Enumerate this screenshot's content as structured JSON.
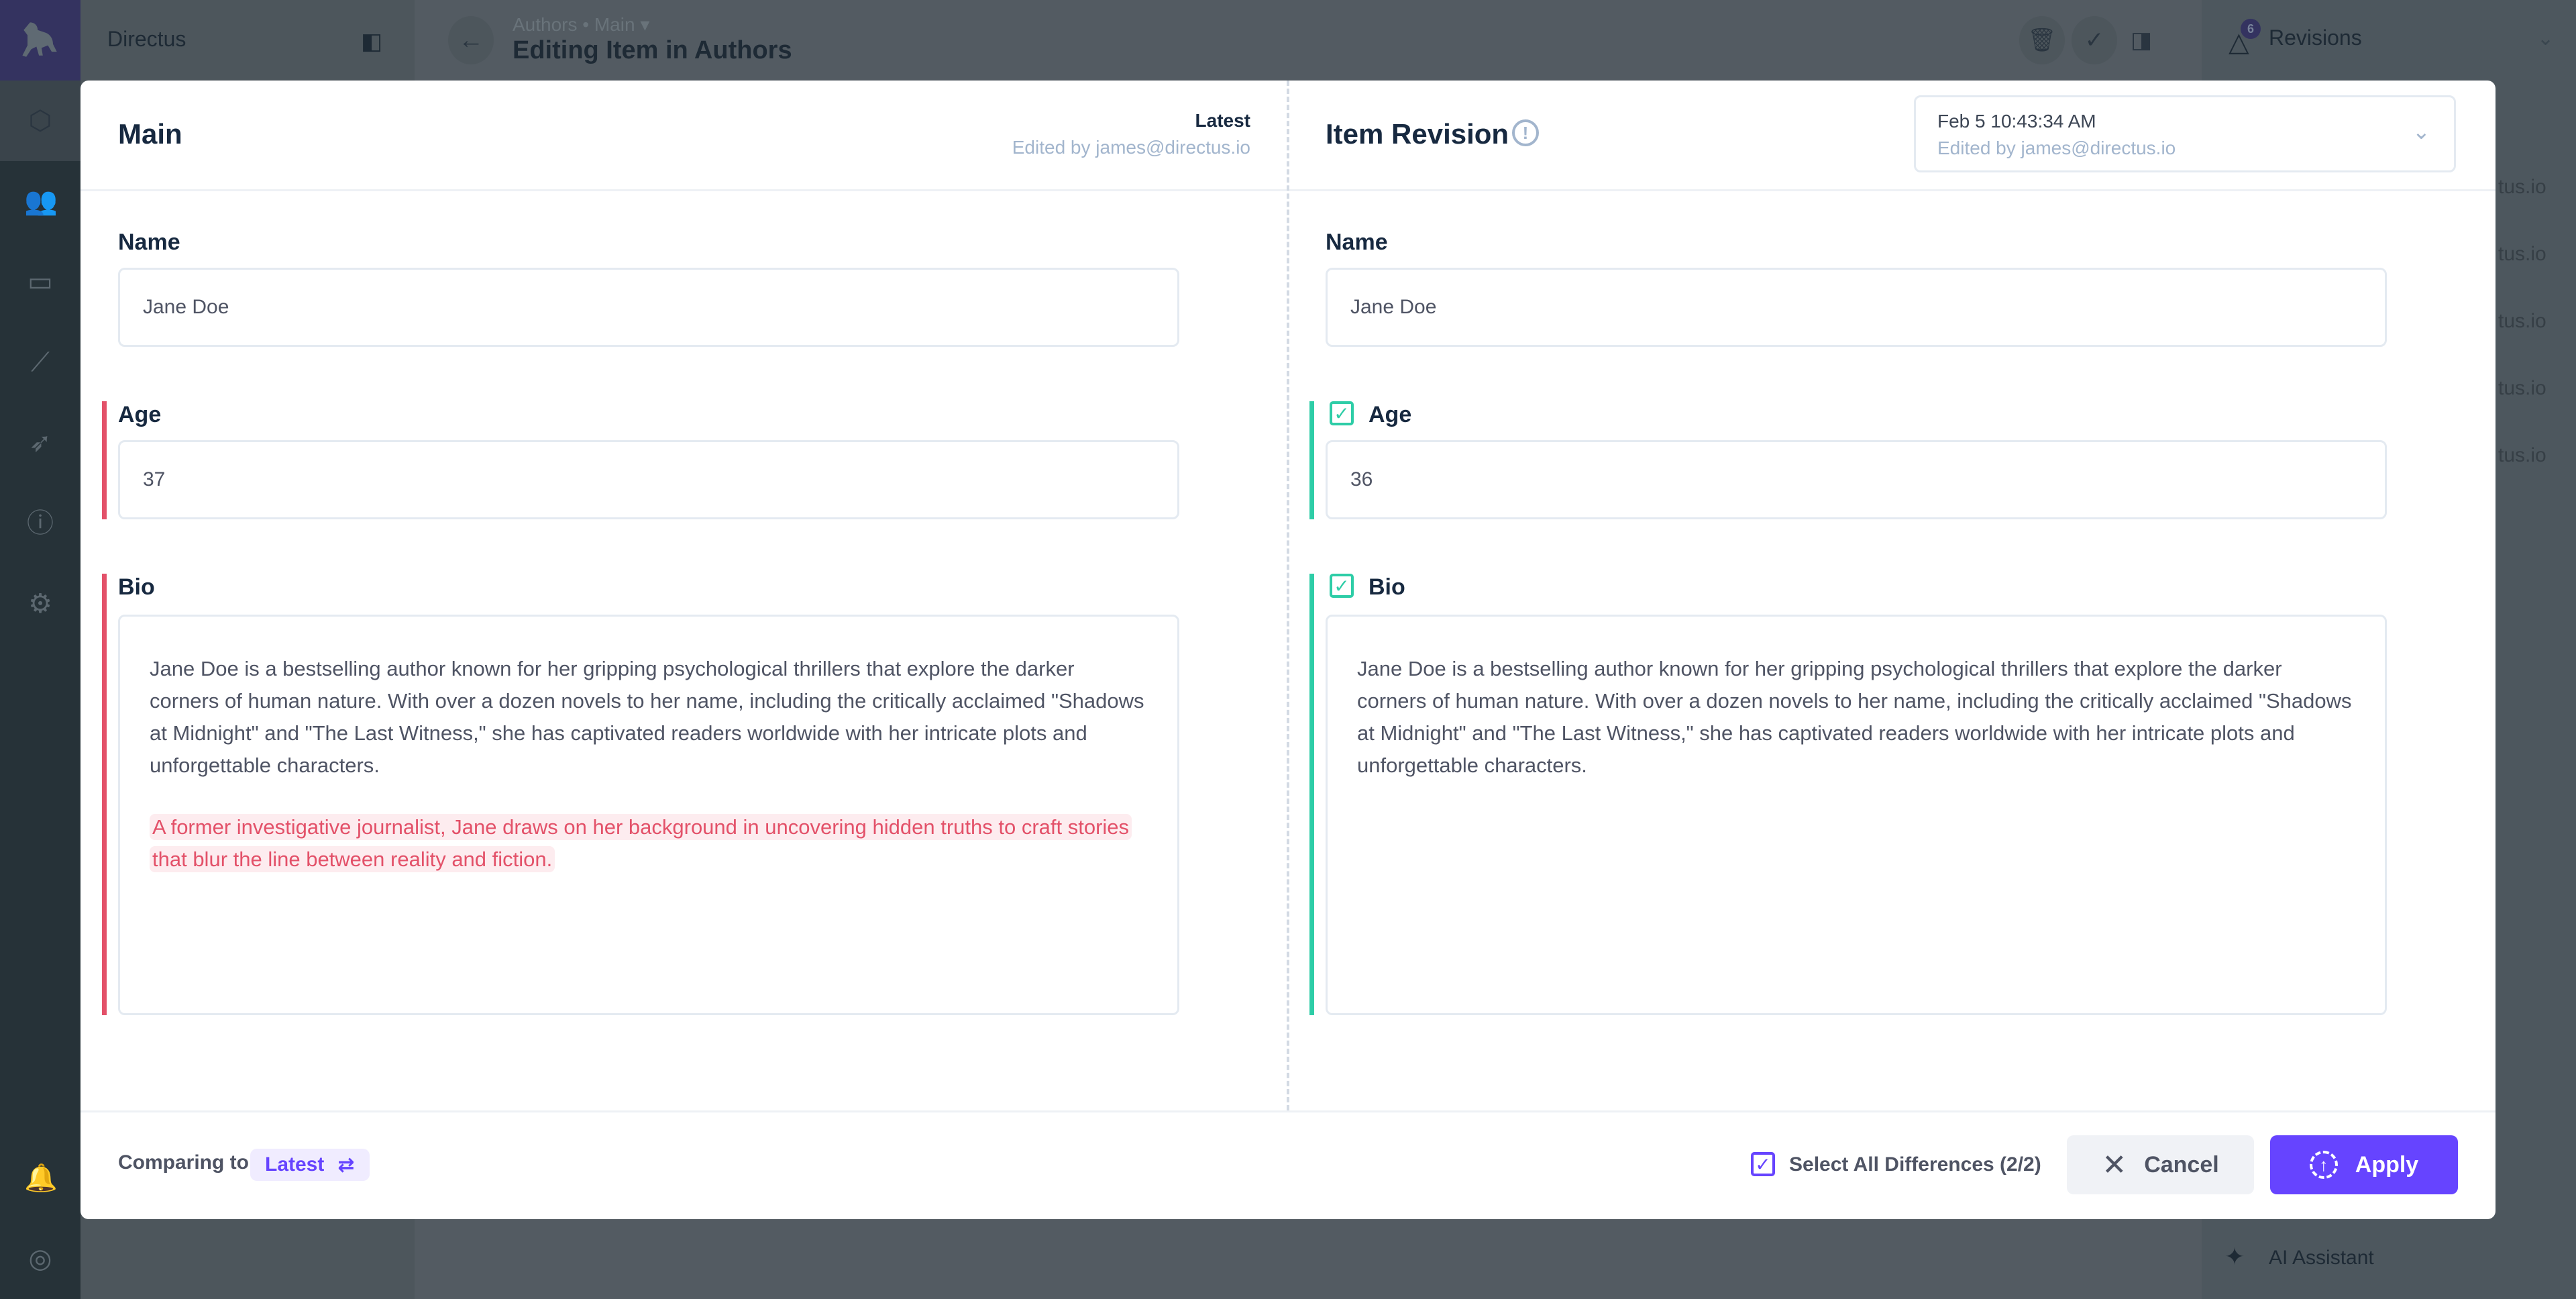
{
  "app": {
    "name": "Directus"
  },
  "header": {
    "breadcrumb": "Authors • Main ▾",
    "title": "Editing Item in Authors"
  },
  "right_sidebar": {
    "revisions_label": "Revisions",
    "revisions_count": "6",
    "ghost_rows": [
      "tus.io",
      "tus.io",
      "tus.io",
      "tus.io",
      "tus.io"
    ],
    "ai_label": "AI Assistant"
  },
  "modal": {
    "left": {
      "title": "Main",
      "version": "Latest",
      "edited_by": "Edited by james@directus.io"
    },
    "right": {
      "title": "Item Revision",
      "dropdown_date": "Feb 5 10:43:34 AM",
      "dropdown_edited_by": "Edited by james@directus.io"
    },
    "fields": {
      "name": {
        "label": "Name",
        "left": "Jane Doe",
        "right": "Jane Doe"
      },
      "age": {
        "label": "Age",
        "left": "37",
        "right": "36",
        "selected": true
      },
      "bio": {
        "label": "Bio",
        "left_p1": "Jane Doe is a bestselling author known for her gripping psychological thrillers that explore the darker corners of human nature. With over a dozen novels to her name, including the critically acclaimed \"Shadows at Midnight\" and \"The Last Witness,\" she has captivated readers worldwide with her intricate plots and unforgettable characters.",
        "left_p2_removed": "A former investigative journalist, Jane draws on her background in uncovering hidden truths to craft stories that blur the line between reality and fiction.",
        "right_p1": "Jane Doe is a bestselling author known for her gripping psychological thrillers that explore the darker corners of human nature. With over a dozen novels to her name, including the critically acclaimed \"Shadows at Midnight\" and \"The Last Witness,\" she has captivated readers worldwide with her intricate plots and unforgettable characters.",
        "selected": true
      }
    },
    "footer": {
      "comparing_label": "Comparing to",
      "comparing_value": "Latest",
      "select_all": "Select All Differences (2/2)",
      "select_all_checked": true,
      "cancel": "Cancel",
      "apply": "Apply"
    }
  },
  "colors": {
    "accent": "#6644ff",
    "removed": "#e35169",
    "added": "#2ecda7"
  }
}
